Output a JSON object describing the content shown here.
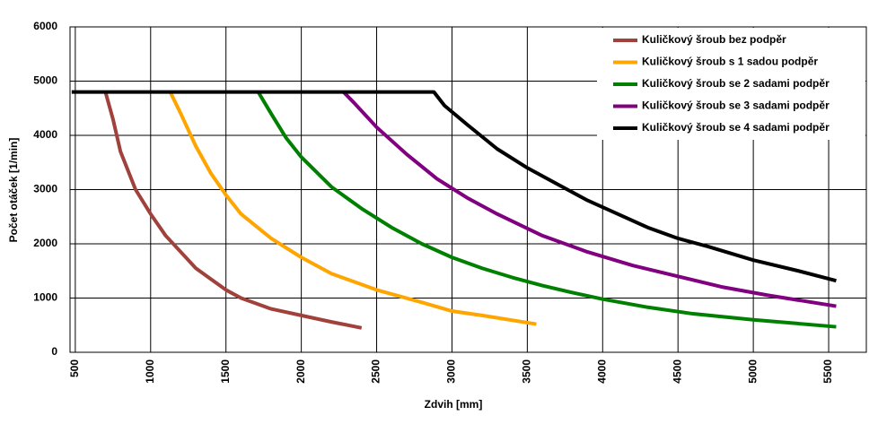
{
  "chart_data": {
    "type": "line",
    "x_label": "Zdvih [mm]",
    "y_label": "Počet otáček [1/min]",
    "xlim": [
      465,
      5750
    ],
    "xticks": [
      500,
      1000,
      1500,
      2000,
      2500,
      3000,
      3500,
      4000,
      4500,
      5000,
      5500
    ],
    "ylim": [
      0,
      6000
    ],
    "yticks": [
      0,
      1000,
      2000,
      3000,
      4000,
      5000,
      6000
    ],
    "grid": true,
    "legend": "top-right",
    "series": [
      {
        "name": "Kuličkový šroub bez podpěr",
        "color": "#a0413c",
        "x": [
          700,
          750,
          800,
          900,
          1000,
          1100,
          1200,
          1300,
          1400,
          1500,
          1600,
          1800,
          2000,
          2200,
          2400
        ],
        "values": [
          4800,
          4300,
          3700,
          3000,
          2550,
          2150,
          1850,
          1550,
          1350,
          1150,
          1000,
          800,
          680,
          560,
          450
        ]
      },
      {
        "name": "Kuličkový šroub s 1 sadou podpěr",
        "color": "#ffa500",
        "x": [
          1130,
          1200,
          1300,
          1400,
          1500,
          1600,
          1800,
          2000,
          2200,
          2500,
          2800,
          3000,
          3200,
          3560
        ],
        "values": [
          4800,
          4400,
          3800,
          3300,
          2900,
          2550,
          2100,
          1750,
          1450,
          1150,
          920,
          760,
          680,
          520
        ]
      },
      {
        "name": "Kuličkový šroub se 2 sadami podpěr",
        "color": "#008000",
        "x": [
          1714,
          1800,
          1900,
          2000,
          2200,
          2400,
          2600,
          2800,
          3000,
          3200,
          3400,
          3600,
          3800,
          4000,
          4300,
          4600,
          5000,
          5550
        ],
        "values": [
          4800,
          4400,
          3950,
          3600,
          3050,
          2650,
          2300,
          2000,
          1750,
          1550,
          1380,
          1230,
          1100,
          980,
          830,
          710,
          600,
          470
        ]
      },
      {
        "name": "Kuličkový šroub se 3 sadami podpěr",
        "color": "#800080",
        "x": [
          2280,
          2350,
          2500,
          2700,
          2900,
          3100,
          3300,
          3600,
          3900,
          4200,
          4500,
          4800,
          5100,
          5550
        ],
        "values": [
          4800,
          4600,
          4150,
          3650,
          3200,
          2850,
          2550,
          2150,
          1850,
          1600,
          1400,
          1200,
          1050,
          850
        ]
      },
      {
        "name": "Kuličkový šroub se 4 sadami podpěr",
        "color": "#000000",
        "x": [
          476,
          2880,
          2950,
          3100,
          3300,
          3500,
          3700,
          3900,
          4100,
          4300,
          4500,
          4700,
          5000,
          5300,
          5550
        ],
        "values": [
          4800,
          4800,
          4550,
          4200,
          3750,
          3400,
          3100,
          2800,
          2550,
          2300,
          2100,
          1950,
          1700,
          1500,
          1320
        ]
      }
    ]
  }
}
